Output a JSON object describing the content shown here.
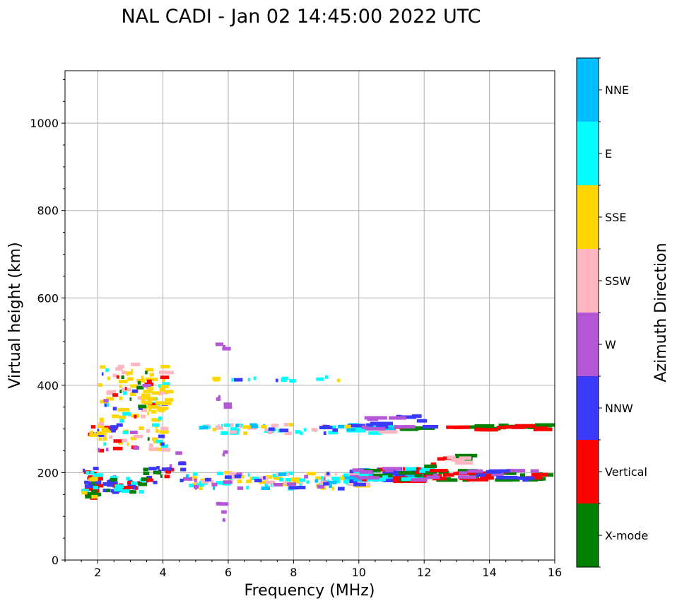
{
  "chart_data": {
    "type": "scatter",
    "title": "NAL CADI - Jan 02 14:45:00 2022 UTC",
    "xlabel": "Frequency (MHz)",
    "ylabel": "Virtual height (km)",
    "xlim": [
      1,
      16
    ],
    "ylim": [
      0,
      1120
    ],
    "grid": true,
    "x_ticks": [
      2,
      4,
      6,
      8,
      10,
      12,
      14,
      16
    ],
    "y_ticks": [
      0,
      200,
      400,
      600,
      800,
      1000
    ],
    "colorbar": {
      "label": "Azimuth Direction",
      "categories": [
        {
          "name": "X-mode",
          "color": "#008000"
        },
        {
          "name": "Vertical",
          "color": "#ff0000"
        },
        {
          "name": "NNW",
          "color": "#3a3aff"
        },
        {
          "name": "W",
          "color": "#b357d6"
        },
        {
          "name": "SSW",
          "color": "#ffb6c1"
        },
        {
          "name": "SSE",
          "color": "#ffd700"
        },
        {
          "name": "E",
          "color": "#00ffff"
        },
        {
          "name": "NNE",
          "color": "#00bfff"
        }
      ]
    },
    "segments": [
      [
        1.5,
        1.95,
        135,
        210,
        "Vertical",
        20
      ],
      [
        1.5,
        1.95,
        135,
        210,
        "X-mode",
        10
      ],
      [
        1.5,
        1.95,
        135,
        210,
        "NNW",
        6
      ],
      [
        1.5,
        1.95,
        135,
        210,
        "E",
        5
      ],
      [
        1.5,
        1.95,
        135,
        210,
        "SSE",
        4
      ],
      [
        2.0,
        3.3,
        155,
        190,
        "NNW",
        18
      ],
      [
        2.0,
        3.3,
        155,
        190,
        "Vertical",
        8
      ],
      [
        2.0,
        3.3,
        155,
        190,
        "E",
        8
      ],
      [
        2.0,
        3.3,
        155,
        190,
        "X-mode",
        4
      ],
      [
        3.3,
        4.1,
        175,
        215,
        "NNW",
        8
      ],
      [
        3.3,
        4.1,
        175,
        215,
        "X-mode",
        6
      ],
      [
        3.3,
        4.1,
        175,
        215,
        "Vertical",
        4
      ],
      [
        1.7,
        2.4,
        285,
        310,
        "Vertical",
        10
      ],
      [
        1.7,
        2.4,
        285,
        310,
        "NNW",
        5
      ],
      [
        1.7,
        2.4,
        285,
        310,
        "SSE",
        6
      ],
      [
        2.0,
        4.1,
        250,
        450,
        "SSE",
        60
      ],
      [
        2.0,
        4.1,
        250,
        450,
        "SSW",
        30
      ],
      [
        2.0,
        4.1,
        250,
        450,
        "E",
        15
      ],
      [
        2.0,
        4.1,
        250,
        450,
        "Vertical",
        12
      ],
      [
        2.0,
        4.1,
        250,
        450,
        "NNW",
        10
      ],
      [
        2.0,
        4.1,
        250,
        450,
        "X-mode",
        8
      ],
      [
        2.0,
        4.1,
        250,
        450,
        "W",
        6
      ],
      [
        3.3,
        4.1,
        330,
        400,
        "SSE",
        25
      ],
      [
        4.5,
        10.0,
        163,
        200,
        "SSE",
        35
      ],
      [
        4.5,
        10.0,
        163,
        200,
        "E",
        35
      ],
      [
        4.5,
        10.0,
        163,
        200,
        "SSW",
        20
      ],
      [
        4.5,
        10.0,
        163,
        200,
        "W",
        15
      ],
      [
        4.5,
        10.0,
        163,
        200,
        "NNW",
        12
      ],
      [
        4.5,
        10.0,
        163,
        200,
        "NNE",
        8
      ],
      [
        5.0,
        10.6,
        290,
        310,
        "E",
        30
      ],
      [
        5.0,
        10.6,
        290,
        310,
        "SSW",
        15
      ],
      [
        5.0,
        10.6,
        290,
        310,
        "NNW",
        8
      ],
      [
        5.0,
        10.6,
        290,
        310,
        "NNE",
        8
      ],
      [
        5.0,
        10.6,
        290,
        310,
        "SSE",
        6
      ],
      [
        9.7,
        12.0,
        180,
        210,
        "NNW",
        25
      ],
      [
        9.7,
        12.0,
        180,
        210,
        "NNE",
        15
      ],
      [
        9.7,
        12.0,
        180,
        210,
        "Vertical",
        12
      ],
      [
        9.7,
        12.0,
        180,
        210,
        "X-mode",
        6
      ],
      [
        9.7,
        12.0,
        180,
        210,
        "E",
        8
      ],
      [
        9.7,
        12.0,
        180,
        210,
        "W",
        6
      ],
      [
        12.0,
        15.5,
        183,
        205,
        "X-mode",
        25
      ],
      [
        12.0,
        15.5,
        183,
        205,
        "Vertical",
        15
      ],
      [
        12.0,
        15.5,
        183,
        205,
        "W",
        8
      ],
      [
        12.0,
        15.5,
        183,
        205,
        "NNW",
        6
      ],
      [
        11.0,
        16.0,
        298,
        310,
        "X-mode",
        14
      ],
      [
        11.0,
        16.0,
        298,
        310,
        "Vertical",
        14
      ],
      [
        10.0,
        12.0,
        298,
        330,
        "NNW",
        8
      ],
      [
        10.0,
        12.0,
        298,
        330,
        "W",
        6
      ],
      [
        12.0,
        13.2,
        210,
        245,
        "Vertical",
        4
      ],
      [
        12.0,
        13.2,
        210,
        245,
        "X-mode",
        4
      ],
      [
        12.0,
        13.2,
        210,
        245,
        "SSW",
        4
      ],
      [
        5.0,
        9.8,
        410,
        420,
        "E",
        8
      ],
      [
        5.0,
        9.8,
        410,
        420,
        "SSE",
        3
      ],
      [
        5.0,
        9.8,
        410,
        420,
        "NNW",
        2
      ],
      [
        5.6,
        5.9,
        90,
        140,
        "W",
        4
      ],
      [
        5.6,
        5.9,
        240,
        255,
        "W",
        2
      ],
      [
        5.6,
        5.9,
        330,
        375,
        "W",
        4
      ],
      [
        5.6,
        5.9,
        450,
        495,
        "W",
        3
      ],
      [
        4.0,
        4.7,
        205,
        245,
        "W",
        3
      ],
      [
        4.0,
        4.7,
        205,
        245,
        "NNW",
        3
      ]
    ]
  }
}
